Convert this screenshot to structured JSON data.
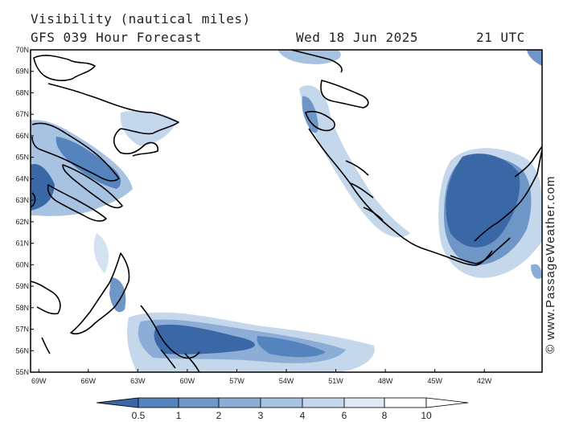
{
  "header": {
    "title": "Visibility (nautical miles)",
    "model_run": "GFS 039 Hour Forecast",
    "date": "Wed 18 Jun 2025",
    "time": "21 UTC"
  },
  "credit": "© www.PassageWeather.com",
  "map": {
    "lat_labels": [
      "70N",
      "69N",
      "68N",
      "67N",
      "66N",
      "65N",
      "64N",
      "63N",
      "62N",
      "61N",
      "60N",
      "59N",
      "58N",
      "57N",
      "56N",
      "55N"
    ],
    "lon_labels": [
      "69W",
      "66W",
      "63W",
      "60W",
      "57W",
      "54W",
      "51W",
      "48W",
      "45W",
      "42W"
    ],
    "lat_range": [
      55,
      70
    ],
    "lon_range": [
      -69.5,
      -38.5
    ]
  },
  "legend": {
    "ticks": [
      "0.5",
      "1",
      "2",
      "3",
      "4",
      "6",
      "8",
      "10"
    ],
    "colors": [
      "#3a67a5",
      "#5583bd",
      "#6e97c8",
      "#8cadd5",
      "#a8c3e1",
      "#c4d7eb",
      "#dfe9f5",
      "#ffffff"
    ]
  },
  "colors": {
    "fog_dark": "#3a67a5",
    "fog_mid": "#6e97c8",
    "fog_light": "#a8c3e1",
    "fog_faint": "#d4e2f1",
    "coast": "#000000"
  }
}
